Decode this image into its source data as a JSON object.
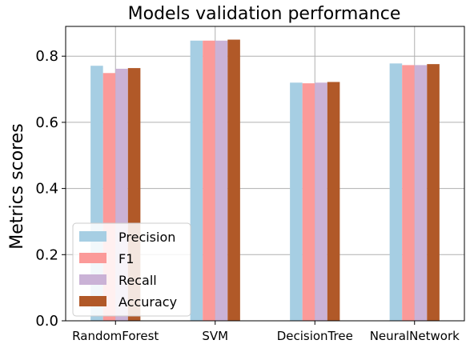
{
  "chart_data": {
    "type": "bar",
    "title": "Models validation performance",
    "xlabel": "",
    "ylabel": "Metrics scores",
    "categories": [
      "RandomForest",
      "SVM",
      "DecisionTree",
      "NeuralNetwork"
    ],
    "series": [
      {
        "name": "Precision",
        "color": "#a6cee3",
        "values": [
          0.771,
          0.847,
          0.72,
          0.778
        ]
      },
      {
        "name": "F1",
        "color": "#fb9a99",
        "values": [
          0.749,
          0.847,
          0.718,
          0.773
        ]
      },
      {
        "name": "Recall",
        "color": "#cab2d6",
        "values": [
          0.762,
          0.847,
          0.72,
          0.773
        ]
      },
      {
        "name": "Accuracy",
        "color": "#b15928",
        "values": [
          0.764,
          0.85,
          0.722,
          0.776
        ]
      }
    ],
    "ylim": [
      0,
      0.89
    ],
    "yticks": [
      "0.0",
      "0.2",
      "0.4",
      "0.6",
      "0.8"
    ],
    "ytick_values": [
      0,
      0.2,
      0.4,
      0.6,
      0.8
    ],
    "grid": true,
    "legend_position": "lower-left"
  }
}
